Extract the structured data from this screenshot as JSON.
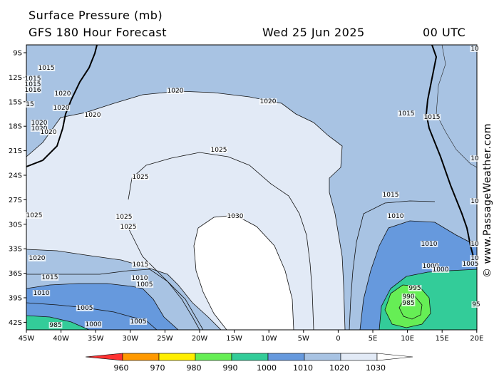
{
  "header": {
    "line1": "Surface Pressure (mb)",
    "line2": "GFS 180 Hour Forecast",
    "date": "Wed 25 Jun 2025",
    "time": "00 UTC"
  },
  "credit": "© www.PassageWeather.com",
  "axes": {
    "lat_labels": [
      "9S",
      "12S",
      "15S",
      "18S",
      "21S",
      "24S",
      "27S",
      "30S",
      "33S",
      "36S",
      "39S",
      "42S"
    ],
    "lon_labels": [
      "45W",
      "40W",
      "35W",
      "30W",
      "25W",
      "20W",
      "15W",
      "10W",
      "5W",
      "0",
      "5E",
      "10E",
      "15E",
      "20E"
    ]
  },
  "colorbar": {
    "labels": [
      "960",
      "970",
      "980",
      "990",
      "1000",
      "1010",
      "1020",
      "1030"
    ],
    "colors": [
      "#ff3333",
      "#ff9900",
      "#ffee00",
      "#66ee55",
      "#33cc99",
      "#6699dd",
      "#a8c3e3",
      "#e2eaf6"
    ]
  },
  "contour_labels": [
    "1015",
    "1015",
    "1015",
    "1016",
    "1020",
    "15",
    "1020",
    "1020",
    "1020",
    "1020",
    "1020",
    "1020",
    "1020",
    "1025",
    "1025",
    "1025",
    "1025",
    "1025",
    "1030",
    "1015",
    "1015",
    "1015",
    "1010",
    "1010",
    "1020",
    "1015",
    "1010",
    "1005",
    "1000",
    "985",
    "1015",
    "1010",
    "1005",
    "1005",
    "995",
    "990",
    "985",
    "1000",
    "1000",
    "1005",
    "10",
    "10",
    "10",
    "10",
    "10",
    "95"
  ],
  "colors": {
    "land": "#a8c3e3",
    "ocean_1020": "#a8c3e3",
    "ocean_1025": "#e2eaf6",
    "high": "#ffffff",
    "band_1015": "#a8c3e3",
    "band_1010": "#6699dd",
    "band_1000": "#33cc99",
    "band_990": "#66ee55"
  }
}
